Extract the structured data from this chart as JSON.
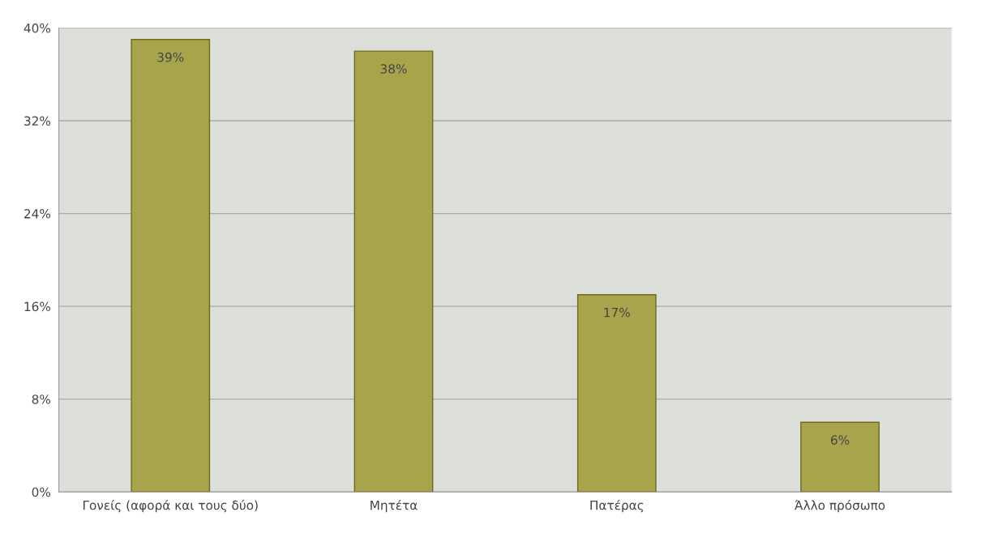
{
  "chart_data": {
    "type": "bar",
    "categories": [
      "Γονείς (αφορά και τους δύο)",
      "Μητέτα",
      "Πατέρας",
      "Άλλο πρόσωπο"
    ],
    "values": [
      39,
      38,
      17,
      6
    ],
    "color": "#b8b23c",
    "value_labels": [
      "39%",
      "38%",
      "17%",
      "6%"
    ],
    "ylim": [
      0,
      40
    ],
    "yticks": [
      {
        "value": 0,
        "label": "0%"
      },
      {
        "value": 8,
        "label": "8%"
      },
      {
        "value": 16,
        "label": "16%"
      },
      {
        "value": 24,
        "label": "24%"
      },
      {
        "value": 32,
        "label": "32%"
      },
      {
        "value": 40,
        "label": "40%"
      }
    ],
    "grid": "y"
  }
}
